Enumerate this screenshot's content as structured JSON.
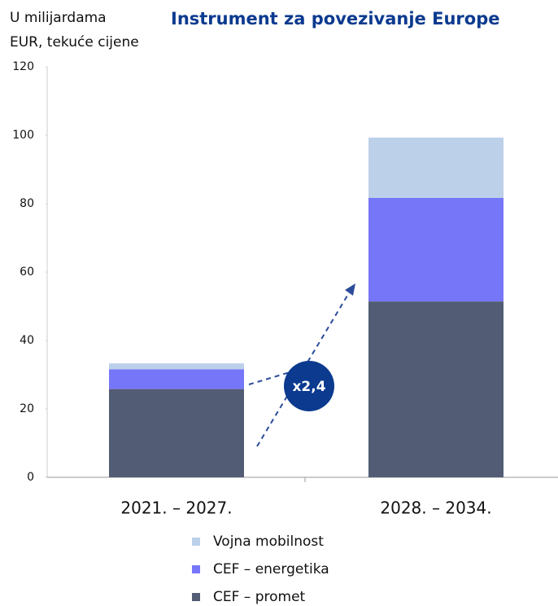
{
  "chart_data": {
    "type": "stacked_bar",
    "title": "Instrument za povezivanje Europe",
    "y_label": [
      "U milijardama",
      "EUR, tekuće cijene"
    ],
    "annotation": "x2,4",
    "categories": [
      "2021. – 2027.",
      "2028. – 2034."
    ],
    "series": [
      {
        "name": "CEF – promet",
        "color": "#525c74",
        "values": [
          25.8,
          51.4
        ]
      },
      {
        "name": "CEF – energetika",
        "color": "#7676f9",
        "values": [
          5.8,
          30.3
        ]
      },
      {
        "name": "Vojna mobilnost",
        "color": "#bcd0ea",
        "values": [
          1.7,
          17.6
        ]
      }
    ],
    "ylim": [
      0,
      120
    ],
    "yticks": [
      0,
      20,
      40,
      60,
      80,
      100,
      120
    ]
  }
}
